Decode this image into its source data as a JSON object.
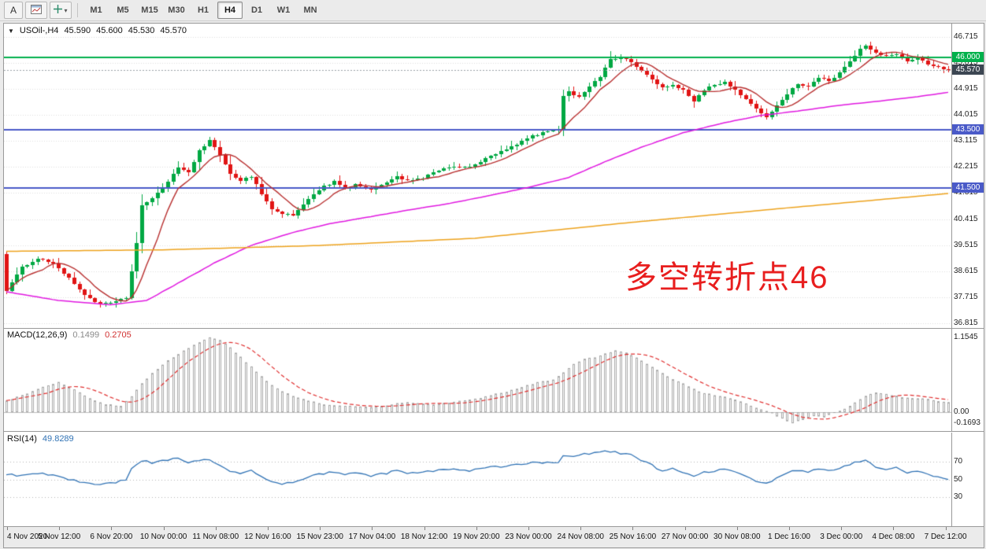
{
  "toolbar": {
    "annotation_button": "A",
    "timeframes": [
      {
        "label": "M1"
      },
      {
        "label": "M5"
      },
      {
        "label": "M15"
      },
      {
        "label": "M30"
      },
      {
        "label": "H1"
      },
      {
        "label": "H4"
      },
      {
        "label": "D1"
      },
      {
        "label": "W1"
      },
      {
        "label": "MN"
      }
    ],
    "active_timeframe": "H4"
  },
  "icons": {
    "symbol_caret": "▼",
    "dropdown_caret": "▾"
  },
  "symbol_header": {
    "name": "USOil-,H4",
    "open": "45.590",
    "high": "45.600",
    "low": "45.530",
    "close": "45.570"
  },
  "annotation": {
    "text": "多空转折点46",
    "color": "#e81e1e"
  },
  "price_axis": {
    "ticks": [
      "46.715",
      "45.815",
      "44.915",
      "44.015",
      "43.115",
      "42.215",
      "41.315",
      "40.415",
      "39.515",
      "38.615",
      "37.715",
      "36.815"
    ]
  },
  "levels": [
    {
      "label": "46.000",
      "value": 46.0,
      "color": "#00b14c"
    },
    {
      "label": "43.500",
      "value": 43.5,
      "color": "#4a5ac8"
    },
    {
      "label": "41.500",
      "value": 41.5,
      "color": "#4a5ac8"
    }
  ],
  "current_price": {
    "label": "45.570",
    "value": 45.57,
    "badge": "#3c4652"
  },
  "macd_panel": {
    "title": "MACD(12,26,9)",
    "value_main": "0.1499",
    "value_signal": "0.2705",
    "axis": [
      "1.1545",
      "0.00",
      "-0.1693"
    ],
    "axis_values": [
      1.1545,
      0,
      -0.1693
    ]
  },
  "rsi_panel": {
    "title": "RSI(14)",
    "value": "49.8289",
    "axis": [
      "70",
      "50",
      "30"
    ],
    "axis_values": [
      70,
      50,
      30
    ]
  },
  "time_axis": [
    "4 Nov 2020",
    "5 Nov 12:00",
    "6 Nov 20:00",
    "10 Nov 00:00",
    "11 Nov 08:00",
    "12 Nov 16:00",
    "15 Nov 23:00",
    "17 Nov 04:00",
    "18 Nov 12:00",
    "19 Nov 20:00",
    "23 Nov 00:00",
    "24 Nov 08:00",
    "25 Nov 16:00",
    "27 Nov 00:00",
    "30 Nov 08:00",
    "1 Dec 16:00",
    "3 Dec 00:00",
    "4 Dec 08:00",
    "7 Dec 12:00"
  ],
  "chart_data": {
    "type": "candlestick",
    "symbol": "USOil-",
    "timeframe": "H4",
    "current_ohlc": {
      "open": 45.59,
      "high": 45.6,
      "low": 45.53,
      "close": 45.57
    },
    "price_range": [
      36.815,
      46.715
    ],
    "bars_count": 182,
    "first_open": 39.2,
    "last_close": 45.57,
    "up_color": "#00a843",
    "down_color": "#e11414",
    "horizontal_lines": [
      46.0,
      43.5,
      41.5
    ],
    "close_anchors": [
      [
        0,
        37.95
      ],
      [
        3,
        38.75
      ],
      [
        6,
        39.05
      ],
      [
        9,
        38.9
      ],
      [
        12,
        38.35
      ],
      [
        15,
        37.8
      ],
      [
        18,
        37.45
      ],
      [
        21,
        37.55
      ],
      [
        23,
        37.7
      ],
      [
        24,
        38.6
      ],
      [
        25,
        39.6
      ],
      [
        26,
        40.9
      ],
      [
        28,
        41.1
      ],
      [
        30,
        41.5
      ],
      [
        33,
        42.2
      ],
      [
        35,
        42.0
      ],
      [
        37,
        42.8
      ],
      [
        39,
        43.15
      ],
      [
        41,
        42.6
      ],
      [
        43,
        42.0
      ],
      [
        45,
        41.75
      ],
      [
        47,
        41.9
      ],
      [
        49,
        41.3
      ],
      [
        51,
        40.75
      ],
      [
        53,
        40.6
      ],
      [
        55,
        40.55
      ],
      [
        57,
        40.9
      ],
      [
        59,
        41.3
      ],
      [
        61,
        41.55
      ],
      [
        63,
        41.7
      ],
      [
        65,
        41.45
      ],
      [
        67,
        41.6
      ],
      [
        70,
        41.45
      ],
      [
        73,
        41.65
      ],
      [
        75,
        41.9
      ],
      [
        77,
        41.75
      ],
      [
        80,
        41.85
      ],
      [
        83,
        42.1
      ],
      [
        86,
        42.25
      ],
      [
        89,
        42.2
      ],
      [
        92,
        42.5
      ],
      [
        95,
        42.75
      ],
      [
        98,
        43.0
      ],
      [
        101,
        43.3
      ],
      [
        104,
        43.45
      ],
      [
        106,
        43.5
      ],
      [
        107,
        44.7
      ],
      [
        108,
        44.8
      ],
      [
        110,
        44.65
      ],
      [
        112,
        45.0
      ],
      [
        114,
        45.35
      ],
      [
        116,
        45.95
      ],
      [
        118,
        46.0
      ],
      [
        120,
        45.85
      ],
      [
        122,
        45.55
      ],
      [
        124,
        45.25
      ],
      [
        126,
        44.95
      ],
      [
        128,
        45.05
      ],
      [
        130,
        44.85
      ],
      [
        132,
        44.5
      ],
      [
        134,
        44.9
      ],
      [
        136,
        45.05
      ],
      [
        138,
        45.15
      ],
      [
        140,
        44.9
      ],
      [
        142,
        44.55
      ],
      [
        144,
        44.2
      ],
      [
        146,
        43.95
      ],
      [
        148,
        44.35
      ],
      [
        150,
        44.75
      ],
      [
        152,
        45.1
      ],
      [
        154,
        45.0
      ],
      [
        156,
        45.3
      ],
      [
        158,
        45.2
      ],
      [
        160,
        45.45
      ],
      [
        162,
        45.9
      ],
      [
        164,
        46.3
      ],
      [
        165,
        46.45
      ],
      [
        167,
        46.15
      ],
      [
        169,
        46.05
      ],
      [
        171,
        46.1
      ],
      [
        173,
        45.9
      ],
      [
        175,
        46.0
      ],
      [
        177,
        45.75
      ],
      [
        179,
        45.65
      ],
      [
        181,
        45.57
      ]
    ],
    "ma_fast": {
      "color": "#b83030",
      "period": 8
    },
    "ma_mid": {
      "color": "#e018e0",
      "anchors": [
        [
          0,
          37.9
        ],
        [
          10,
          37.6
        ],
        [
          20,
          37.45
        ],
        [
          27,
          37.6
        ],
        [
          33,
          38.2
        ],
        [
          40,
          38.9
        ],
        [
          47,
          39.5
        ],
        [
          55,
          39.95
        ],
        [
          62,
          40.25
        ],
        [
          70,
          40.5
        ],
        [
          78,
          40.75
        ],
        [
          85,
          40.95
        ],
        [
          92,
          41.2
        ],
        [
          100,
          41.5
        ],
        [
          108,
          41.85
        ],
        [
          115,
          42.4
        ],
        [
          122,
          42.9
        ],
        [
          130,
          43.4
        ],
        [
          138,
          43.75
        ],
        [
          145,
          44.0
        ],
        [
          152,
          44.15
        ],
        [
          160,
          44.35
        ],
        [
          168,
          44.5
        ],
        [
          175,
          44.65
        ],
        [
          181,
          44.8
        ]
      ]
    },
    "ma_slow": {
      "color": "#eda21c",
      "anchors": [
        [
          0,
          39.3
        ],
        [
          30,
          39.35
        ],
        [
          60,
          39.5
        ],
        [
          90,
          39.75
        ],
        [
          120,
          40.3
        ],
        [
          150,
          40.8
        ],
        [
          181,
          41.3
        ]
      ]
    },
    "macd": {
      "range": [
        -0.1693,
        1.1545
      ],
      "signal_period": 9,
      "anchors": [
        [
          0,
          0.18
        ],
        [
          5,
          0.32
        ],
        [
          8,
          0.42
        ],
        [
          10,
          0.46
        ],
        [
          13,
          0.35
        ],
        [
          16,
          0.22
        ],
        [
          19,
          0.12
        ],
        [
          22,
          0.1
        ],
        [
          24,
          0.25
        ],
        [
          26,
          0.45
        ],
        [
          28,
          0.6
        ],
        [
          31,
          0.8
        ],
        [
          34,
          0.95
        ],
        [
          37,
          1.08
        ],
        [
          39,
          1.154
        ],
        [
          41,
          1.12
        ],
        [
          43,
          1.0
        ],
        [
          45,
          0.85
        ],
        [
          47,
          0.7
        ],
        [
          49,
          0.55
        ],
        [
          51,
          0.42
        ],
        [
          53,
          0.32
        ],
        [
          55,
          0.25
        ],
        [
          58,
          0.18
        ],
        [
          61,
          0.12
        ],
        [
          64,
          0.1
        ],
        [
          67,
          0.09
        ],
        [
          70,
          0.08
        ],
        [
          73,
          0.1
        ],
        [
          75,
          0.14
        ],
        [
          77,
          0.16
        ],
        [
          79,
          0.14
        ],
        [
          82,
          0.12
        ],
        [
          85,
          0.15
        ],
        [
          88,
          0.18
        ],
        [
          91,
          0.22
        ],
        [
          94,
          0.28
        ],
        [
          97,
          0.34
        ],
        [
          100,
          0.42
        ],
        [
          103,
          0.48
        ],
        [
          105,
          0.5
        ],
        [
          107,
          0.62
        ],
        [
          109,
          0.75
        ],
        [
          111,
          0.82
        ],
        [
          113,
          0.85
        ],
        [
          115,
          0.9
        ],
        [
          117,
          0.95
        ],
        [
          119,
          0.92
        ],
        [
          121,
          0.85
        ],
        [
          123,
          0.75
        ],
        [
          125,
          0.65
        ],
        [
          127,
          0.55
        ],
        [
          129,
          0.48
        ],
        [
          131,
          0.4
        ],
        [
          133,
          0.32
        ],
        [
          135,
          0.28
        ],
        [
          137,
          0.25
        ],
        [
          139,
          0.22
        ],
        [
          141,
          0.16
        ],
        [
          143,
          0.1
        ],
        [
          145,
          0.04
        ],
        [
          147,
          -0.02
        ],
        [
          149,
          -0.1
        ],
        [
          151,
          -0.17
        ],
        [
          153,
          -0.12
        ],
        [
          155,
          -0.06
        ],
        [
          157,
          -0.08
        ],
        [
          159,
          -0.02
        ],
        [
          161,
          0.05
        ],
        [
          163,
          0.15
        ],
        [
          165,
          0.25
        ],
        [
          167,
          0.3
        ],
        [
          169,
          0.28
        ],
        [
          171,
          0.25
        ],
        [
          173,
          0.22
        ],
        [
          175,
          0.22
        ],
        [
          177,
          0.2
        ],
        [
          179,
          0.17
        ],
        [
          181,
          0.15
        ]
      ]
    },
    "rsi": {
      "range": [
        0,
        100
      ],
      "levels": [
        70,
        50,
        30
      ],
      "anchors": [
        [
          0,
          56
        ],
        [
          3,
          54
        ],
        [
          6,
          57
        ],
        [
          9,
          55
        ],
        [
          12,
          50
        ],
        [
          15,
          46
        ],
        [
          18,
          44
        ],
        [
          21,
          46
        ],
        [
          23,
          50
        ],
        [
          24,
          62
        ],
        [
          26,
          72
        ],
        [
          28,
          69
        ],
        [
          30,
          72
        ],
        [
          33,
          74
        ],
        [
          35,
          70
        ],
        [
          37,
          72
        ],
        [
          39,
          73
        ],
        [
          41,
          65
        ],
        [
          43,
          60
        ],
        [
          45,
          57
        ],
        [
          47,
          60
        ],
        [
          49,
          53
        ],
        [
          51,
          47
        ],
        [
          53,
          45
        ],
        [
          55,
          46
        ],
        [
          57,
          50
        ],
        [
          59,
          54
        ],
        [
          61,
          57
        ],
        [
          63,
          59
        ],
        [
          65,
          55
        ],
        [
          67,
          57
        ],
        [
          70,
          54
        ],
        [
          73,
          57
        ],
        [
          75,
          60
        ],
        [
          77,
          57
        ],
        [
          80,
          58
        ],
        [
          83,
          61
        ],
        [
          86,
          62
        ],
        [
          89,
          60
        ],
        [
          92,
          63
        ],
        [
          95,
          65
        ],
        [
          98,
          67
        ],
        [
          101,
          69
        ],
        [
          104,
          70
        ],
        [
          106,
          70
        ],
        [
          107,
          78
        ],
        [
          109,
          77
        ],
        [
          111,
          79
        ],
        [
          113,
          80
        ],
        [
          115,
          82
        ],
        [
          117,
          81
        ],
        [
          118,
          79
        ],
        [
          120,
          78
        ],
        [
          122,
          72
        ],
        [
          124,
          66
        ],
        [
          126,
          60
        ],
        [
          128,
          62
        ],
        [
          130,
          58
        ],
        [
          132,
          53
        ],
        [
          134,
          58
        ],
        [
          136,
          60
        ],
        [
          138,
          61
        ],
        [
          140,
          58
        ],
        [
          142,
          53
        ],
        [
          144,
          48
        ],
        [
          146,
          45
        ],
        [
          148,
          52
        ],
        [
          150,
          57
        ],
        [
          152,
          61
        ],
        [
          154,
          59
        ],
        [
          156,
          62
        ],
        [
          158,
          60
        ],
        [
          160,
          63
        ],
        [
          162,
          67
        ],
        [
          164,
          71
        ],
        [
          165,
          72
        ],
        [
          167,
          65
        ],
        [
          169,
          62
        ],
        [
          171,
          63
        ],
        [
          173,
          58
        ],
        [
          175,
          60
        ],
        [
          177,
          55
        ],
        [
          179,
          52
        ],
        [
          181,
          49.8
        ]
      ]
    }
  }
}
